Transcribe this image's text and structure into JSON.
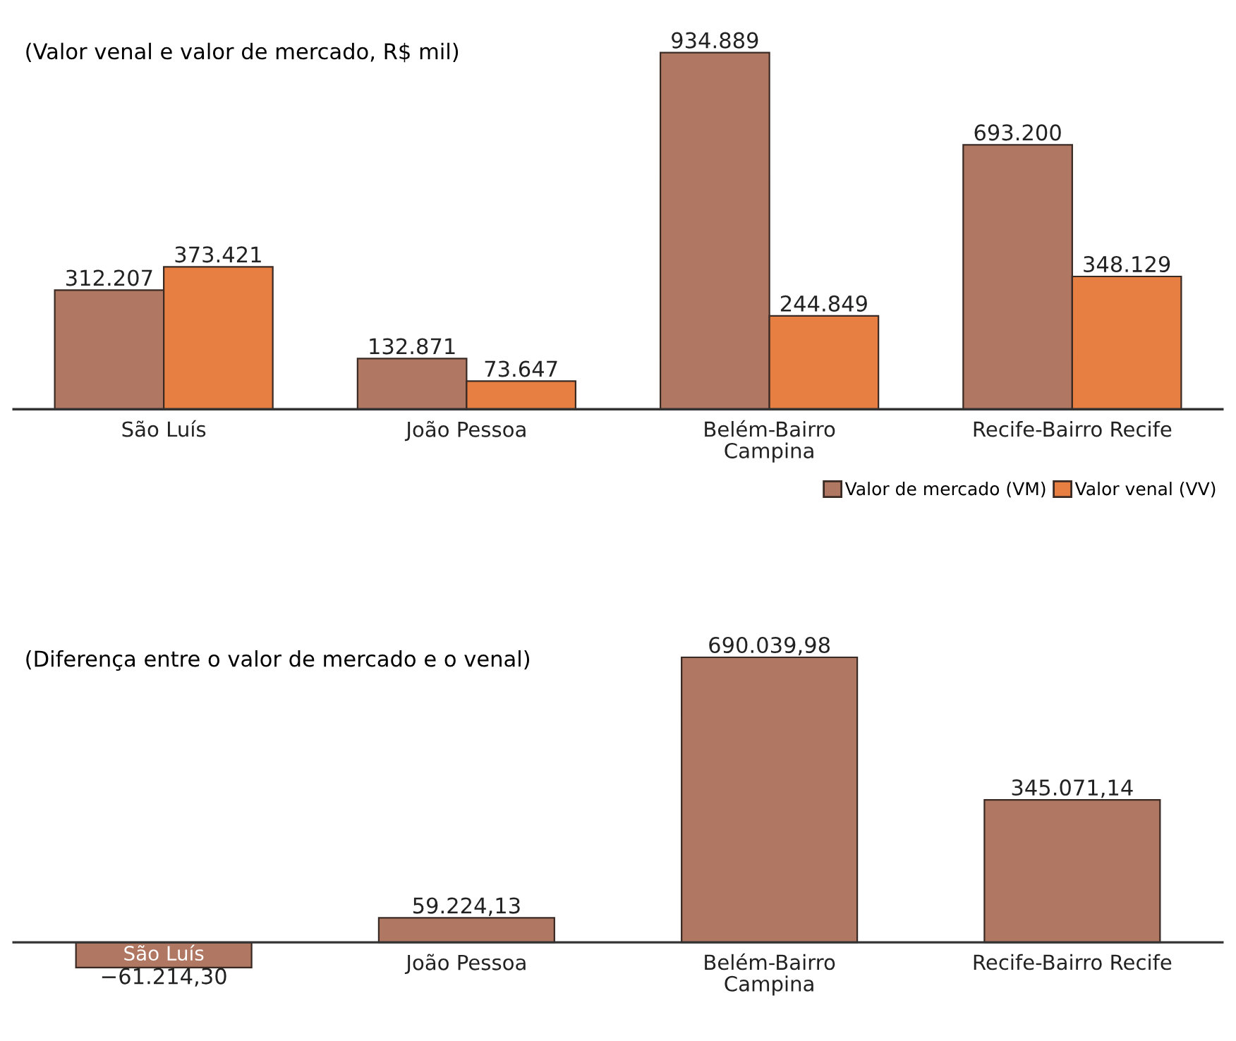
{
  "chart_data": [
    {
      "type": "bar",
      "subtitle": "(Valor venal e valor de mercado, R$ mil)",
      "categories": [
        "São Luís",
        "João Pessoa",
        "Belém-Bairro\nCampina",
        "Recife-Bairro Recife"
      ],
      "legend": "bottom right",
      "series": [
        {
          "name": "Valor de mercado (VM)",
          "color": "#b07763",
          "values": [
            312207,
            132871,
            934889,
            693200
          ],
          "value_labels": [
            "312.207",
            "132.871",
            "934.889",
            "693.200"
          ]
        },
        {
          "name": "Valor venal (VV)",
          "color": "#e77f42",
          "values": [
            373421,
            73647,
            244849,
            348129
          ],
          "value_labels": [
            "373.421",
            "73.647",
            "244.849",
            "348.129"
          ]
        }
      ]
    },
    {
      "type": "bar",
      "subtitle": "(Diferença entre o valor de mercado e o venal)",
      "categories": [
        "São Luís",
        "João Pessoa",
        "Belém-Bairro\nCampina",
        "Recife-Bairro Recife"
      ],
      "color": "#b07763",
      "values": [
        -61214.3,
        59224.13,
        690039.98,
        345071.14
      ],
      "value_labels": [
        "−61.214,30",
        "59.224,13",
        "690.039,98",
        "345.071,14"
      ]
    }
  ]
}
